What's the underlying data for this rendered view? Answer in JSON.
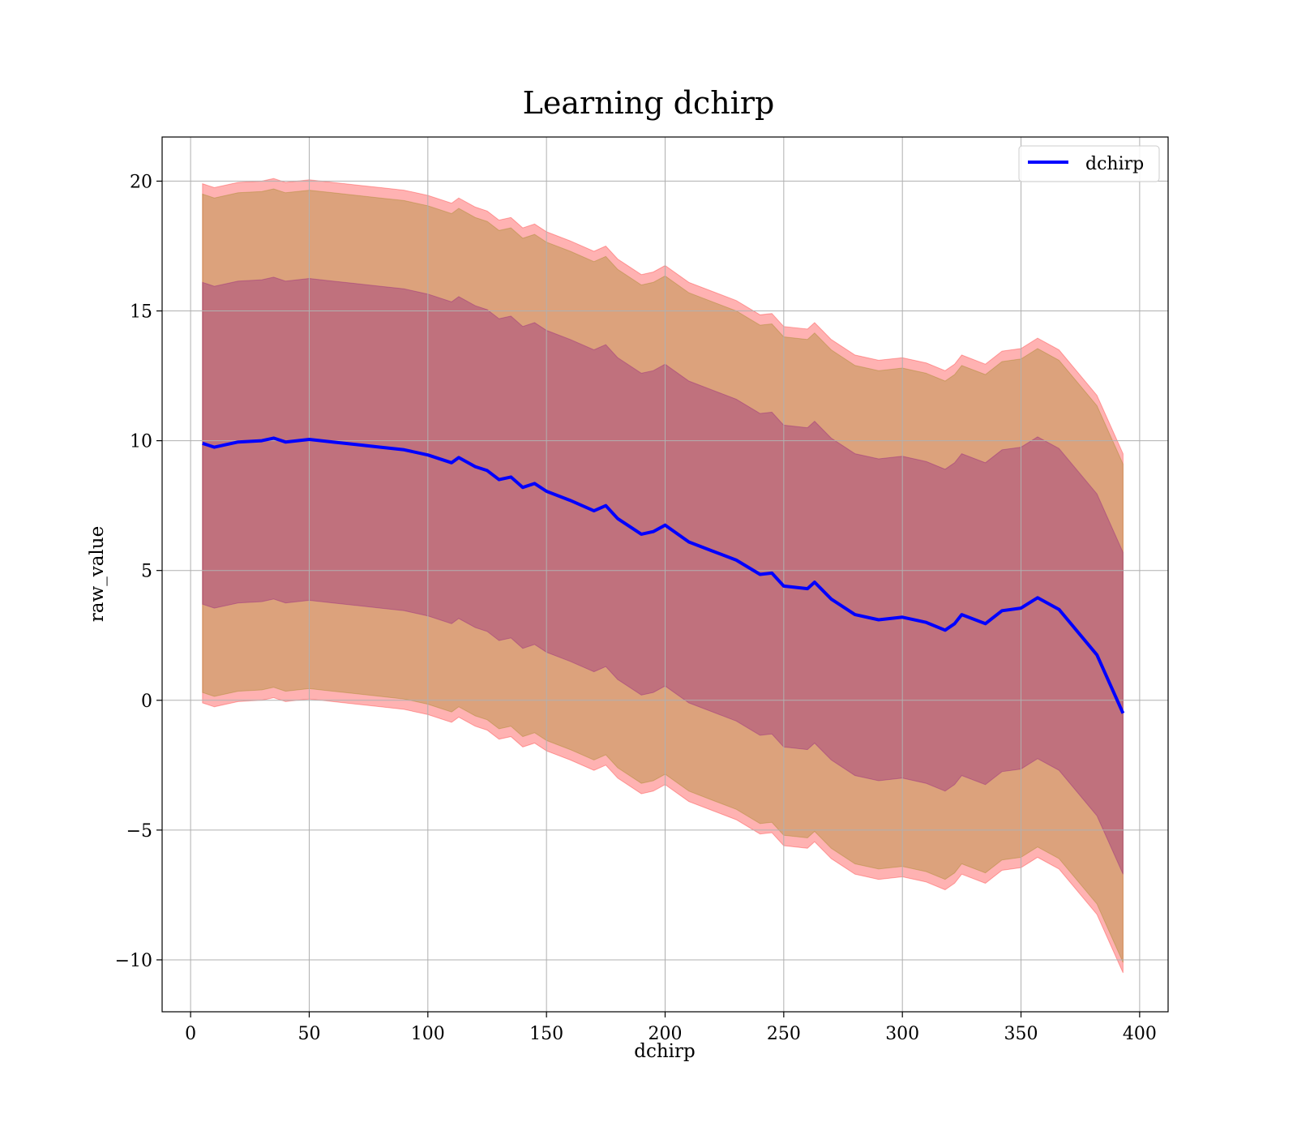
{
  "chart_data": {
    "type": "area",
    "title": "Learning dchirp",
    "xlabel": "dchirp",
    "ylabel": "raw_value",
    "xlim": [
      -12,
      412
    ],
    "ylim": [
      -12,
      21.7
    ],
    "xticks": [
      0,
      50,
      100,
      150,
      200,
      250,
      300,
      350,
      400
    ],
    "xtick_labels": [
      "0",
      "50",
      "100",
      "150",
      "200",
      "250",
      "300",
      "350",
      "400"
    ],
    "yticks": [
      -10,
      -5,
      0,
      5,
      10,
      15,
      20
    ],
    "ytick_labels": [
      "−10",
      "−5",
      "0",
      "5",
      "10",
      "15",
      "20"
    ],
    "grid": true,
    "legend": {
      "position": "top-right",
      "entries": [
        "dchirp"
      ]
    },
    "colors": {
      "mean_line": "#0000ff",
      "band_outer": "#ff0000",
      "band_middle": "#8b7d00",
      "band_inner": "#800080",
      "grid": "#b0b0b0"
    },
    "series": [
      {
        "name": "dchirp",
        "x": [
          5,
          10,
          20,
          30,
          35,
          40,
          50,
          60,
          70,
          80,
          90,
          100,
          110,
          113,
          120,
          125,
          130,
          135,
          140,
          145,
          150,
          160,
          170,
          175,
          180,
          190,
          195,
          200,
          210,
          220,
          230,
          240,
          245,
          250,
          260,
          263,
          270,
          280,
          290,
          300,
          310,
          318,
          322,
          325,
          335,
          342,
          350,
          357,
          366,
          382,
          393
        ],
        "mean": [
          9.9,
          9.75,
          9.95,
          10.0,
          10.1,
          9.95,
          10.05,
          9.95,
          9.85,
          9.75,
          9.65,
          9.45,
          9.15,
          9.35,
          9.0,
          8.85,
          8.5,
          8.6,
          8.2,
          8.35,
          8.05,
          7.7,
          7.3,
          7.5,
          7.0,
          6.4,
          6.5,
          6.75,
          6.1,
          5.75,
          5.4,
          4.85,
          4.9,
          4.4,
          4.3,
          4.55,
          3.9,
          3.3,
          3.1,
          3.2,
          3.0,
          2.7,
          2.95,
          3.3,
          2.95,
          3.45,
          3.55,
          3.95,
          3.5,
          1.75,
          -0.5
        ],
        "band_inner_halfwidth": 6.2,
        "band_middle_halfwidth": 9.6,
        "band_outer_halfwidth": 10.0
      }
    ]
  }
}
